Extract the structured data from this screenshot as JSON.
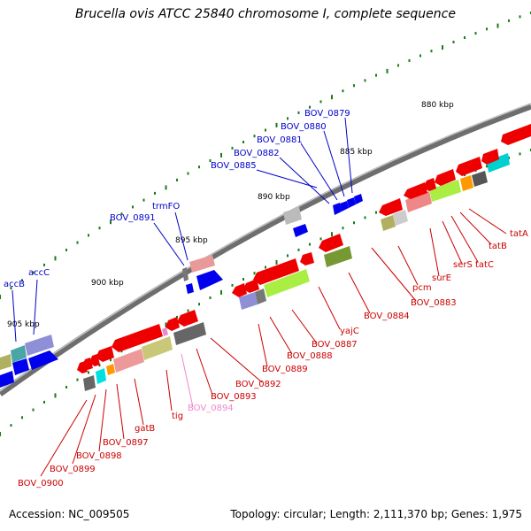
{
  "title": "Brucella ovis ATCC 25840 chromosome I, complete sequence",
  "accession": "Accession: NC_009505",
  "topology": "Topology: circular; Length: 2,111,370 bp; Genes: 1,975",
  "colors": {
    "forward_label": "#0000cc",
    "reverse_label": "#cc0000",
    "pseudo_label": "#ee88cc",
    "forward_gene": "#0000ee",
    "reverse_gene": "#ee0000",
    "backbone": "#777777"
  },
  "kbp_marks": [
    "880 kbp",
    "885 kbp",
    "890 kbp",
    "895 kbp",
    "900 kbp",
    "905 kbp"
  ],
  "forward_genes": [
    {
      "name": "BOV_0879",
      "color": "blue"
    },
    {
      "name": "BOV_0880",
      "color": "blue"
    },
    {
      "name": "BOV_0881",
      "color": "blue"
    },
    {
      "name": "BOV_0882",
      "color": "blue"
    },
    {
      "name": "BOV_0885",
      "color": "blue"
    },
    {
      "name": "trmFO",
      "color": "blue"
    },
    {
      "name": "BOV_0891",
      "color": "blue"
    },
    {
      "name": "accC",
      "color": "blue"
    },
    {
      "name": "accB",
      "color": "blue"
    }
  ],
  "reverse_genes": [
    {
      "name": "tatA"
    },
    {
      "name": "tatB"
    },
    {
      "name": "tatC"
    },
    {
      "name": "serS"
    },
    {
      "name": "surE"
    },
    {
      "name": "pcm"
    },
    {
      "name": "BOV_0883"
    },
    {
      "name": "BOV_0884"
    },
    {
      "name": "yajC"
    },
    {
      "name": "BOV_0887"
    },
    {
      "name": "BOV_0888"
    },
    {
      "name": "BOV_0889"
    },
    {
      "name": "BOV_0892"
    },
    {
      "name": "BOV_0893"
    },
    {
      "name": "BOV_0894",
      "pseudo": true
    },
    {
      "name": "tig"
    },
    {
      "name": "gatB"
    },
    {
      "name": "BOV_0897"
    },
    {
      "name": "BOV_0898"
    },
    {
      "name": "BOV_0899"
    },
    {
      "name": "BOV_0900"
    }
  ]
}
